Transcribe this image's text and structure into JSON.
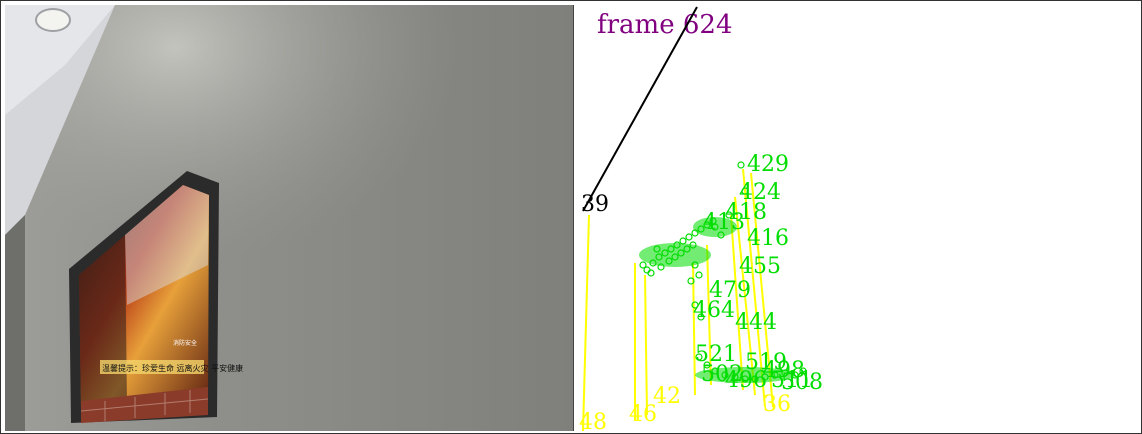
{
  "scene": {
    "poster_caption": "温馨提示：珍爱生命 远离火灾 平安健康",
    "poster_small_text": "消防安全",
    "colors": {
      "wall": "#8c8c88",
      "ceiling": "#d8dadd",
      "frame_border": "#2b2b2b",
      "brick": "#8a3b2a"
    }
  },
  "tracks": {
    "frame_label": "frame 624",
    "colors": {
      "frame_label": "#800080",
      "active_point": "#00ee00",
      "track_line": "#ffff00",
      "ray": "#000000",
      "ray_label": "#000000"
    },
    "ray_label": "39",
    "green_labels": [
      "429",
      "424",
      "418",
      "413",
      "416",
      "455",
      "479",
      "464",
      "444",
      "521",
      "519",
      "502",
      "498",
      "496",
      "511",
      "508"
    ],
    "yellow_labels": [
      "48",
      "46",
      "42",
      "36"
    ]
  }
}
